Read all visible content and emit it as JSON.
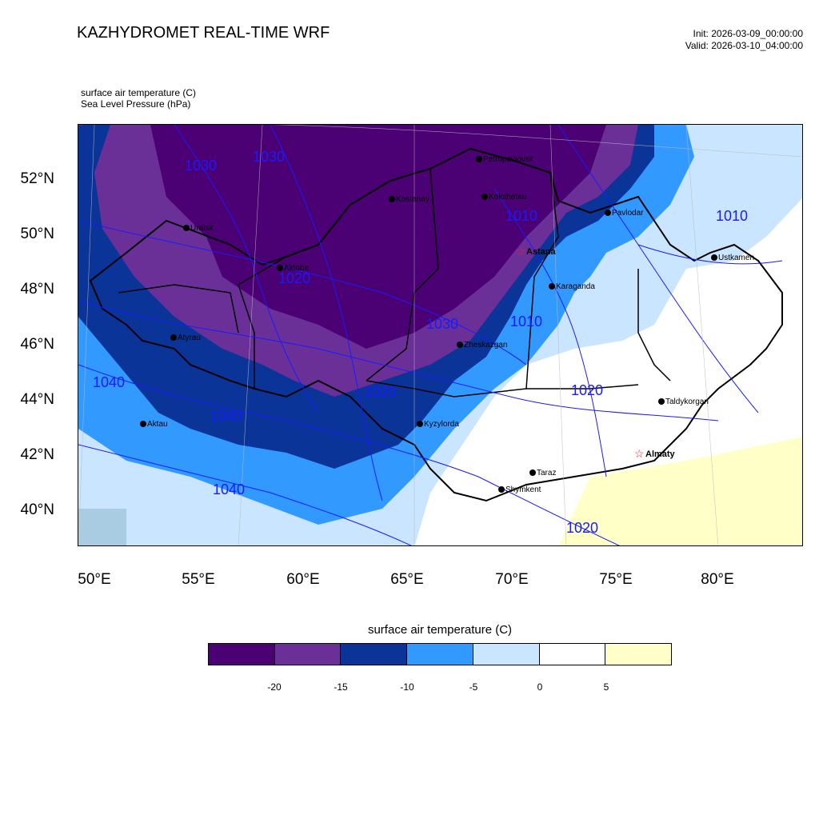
{
  "header": {
    "title": "KAZHYDROMET REAL-TIME WRF",
    "init": "Init: 2026-03-09_00:00:00",
    "valid": "Valid: 2026-03-10_04:00:00"
  },
  "fields": {
    "field1": "surface air temperature   (C)",
    "field2": "Sea Level Pressure   (hPa)"
  },
  "axes": {
    "lat_labels": [
      "52°N",
      "50°N",
      "48°N",
      "46°N",
      "44°N",
      "42°N",
      "40°N"
    ],
    "lon_labels": [
      "50°E",
      "55°E",
      "60°E",
      "65°E",
      "70°E",
      "75°E",
      "80°E"
    ]
  },
  "cities": [
    {
      "name": "Petropavlovsk",
      "capital": false
    },
    {
      "name": "Kostanay",
      "capital": false
    },
    {
      "name": "Kokshetau",
      "capital": false
    },
    {
      "name": "Pavlodar",
      "capital": false
    },
    {
      "name": "Uralsk",
      "capital": false
    },
    {
      "name": "Aktobe",
      "capital": false
    },
    {
      "name": "Astana",
      "capital": true
    },
    {
      "name": "Ustkamen",
      "capital": false
    },
    {
      "name": "Karaganda",
      "capital": false
    },
    {
      "name": "Atyrau",
      "capital": false
    },
    {
      "name": "Zheskazgan",
      "capital": false
    },
    {
      "name": "Kyzylorda",
      "capital": false
    },
    {
      "name": "Aktau",
      "capital": false
    },
    {
      "name": "Taldykorgan",
      "capital": false
    },
    {
      "name": "Almaty",
      "capital": true
    },
    {
      "name": "Taraz",
      "capital": false
    },
    {
      "name": "Shymkent",
      "capital": false
    }
  ],
  "isobar_labels": [
    "1030",
    "1030",
    "1010",
    "1010",
    "1020",
    "1010",
    "1040",
    "1030",
    "1020",
    "1040",
    "1020",
    "1040",
    "1020"
  ],
  "colorbar": {
    "title": "surface air temperature (C)",
    "labels": [
      "-20",
      "-15",
      "-10",
      "-5",
      "0",
      "5"
    ],
    "colors": [
      "#4b0073",
      "#6a3098",
      "#0a3497",
      "#3299ff",
      "#c9e5ff",
      "#ffffff",
      "#ffffc8"
    ]
  },
  "colors": {
    "isobar": "#1a1aff",
    "border": "#000000",
    "star": "#e8202a"
  }
}
